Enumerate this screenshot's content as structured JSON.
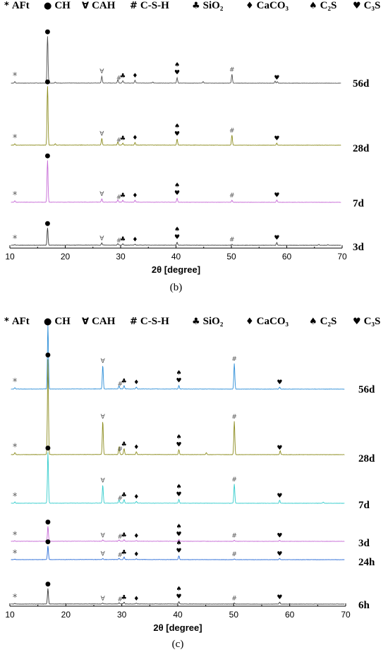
{
  "legend": [
    {
      "symbol": "*",
      "label": "AFt"
    },
    {
      "symbol": "●",
      "label": "CH"
    },
    {
      "symbol": "∀",
      "label": "CAH"
    },
    {
      "symbol": "#",
      "label": "C-S-H"
    },
    {
      "symbol": "♣",
      "label": "SiO₂"
    },
    {
      "symbol": "♦",
      "label": "CaCO₃"
    },
    {
      "symbol": "♠",
      "label": "C₂S"
    },
    {
      "symbol": "♥",
      "label": "C₃S"
    }
  ],
  "chart_data": [
    {
      "type": "line",
      "panel_label": "(b)",
      "xlabel": "2θ [degree]",
      "ylabel": "",
      "xlim": [
        10,
        70
      ],
      "xticks": [
        10,
        20,
        30,
        40,
        50,
        60,
        70
      ],
      "grid": false,
      "series": [
        {
          "name": "56d",
          "color": "#505050",
          "peaks": [
            [
              10.9,
              0.03
            ],
            [
              16.8,
              0.95
            ],
            [
              18.2,
              0.02
            ],
            [
              26.6,
              0.14
            ],
            [
              29.5,
              0.07
            ],
            [
              30.4,
              0.05
            ],
            [
              32.6,
              0.06
            ],
            [
              35.8,
              0.02
            ],
            [
              40.2,
              0.11
            ],
            [
              44.9,
              0.03
            ],
            [
              50.1,
              0.18
            ],
            [
              57.9,
              0.04
            ],
            [
              58.3,
              0.03
            ]
          ]
        },
        {
          "name": "28d",
          "color": "#8c8c1e",
          "peaks": [
            [
              10.9,
              0.02
            ],
            [
              16.8,
              0.88
            ],
            [
              18.2,
              0.02
            ],
            [
              26.6,
              0.1
            ],
            [
              29.5,
              0.05
            ],
            [
              30.4,
              0.03
            ],
            [
              32.6,
              0.04
            ],
            [
              40.2,
              0.09
            ],
            [
              50.1,
              0.15
            ],
            [
              58.2,
              0.03
            ]
          ]
        },
        {
          "name": "7d",
          "color": "#c66ad6",
          "peaks": [
            [
              10.9,
              0.03
            ],
            [
              16.8,
              0.85
            ],
            [
              26.6,
              0.07
            ],
            [
              29.5,
              0.05
            ],
            [
              30.4,
              0.04
            ],
            [
              32.6,
              0.04
            ],
            [
              40.2,
              0.08
            ],
            [
              50.1,
              0.04
            ],
            [
              58.2,
              0.05
            ]
          ]
        },
        {
          "name": "3d",
          "color": "#3a3a3a",
          "peaks": [
            [
              10.9,
              0.02
            ],
            [
              16.8,
              0.55
            ],
            [
              26.6,
              0.07
            ],
            [
              29.5,
              0.05
            ],
            [
              30.4,
              0.04
            ],
            [
              32.6,
              0.03
            ],
            [
              40.2,
              0.09
            ],
            [
              50.1,
              0.03
            ],
            [
              58.2,
              0.09
            ],
            [
              65.8,
              0.03
            ],
            [
              67.4,
              0.02
            ]
          ]
        }
      ],
      "annotations": [
        {
          "series": "56d",
          "markers": [
            [
              10.9,
              "*"
            ],
            [
              16.8,
              "●"
            ],
            [
              26.6,
              "∀"
            ],
            [
              29.7,
              "#"
            ],
            [
              30.4,
              "♣"
            ],
            [
              32.6,
              "♦"
            ],
            [
              40.2,
              "♠♥"
            ],
            [
              50.1,
              "#"
            ],
            [
              58.2,
              "♥"
            ]
          ]
        },
        {
          "series": "28d",
          "markers": [
            [
              10.9,
              "*"
            ],
            [
              16.8,
              "●"
            ],
            [
              26.6,
              "∀"
            ],
            [
              29.7,
              "#"
            ],
            [
              30.4,
              "♣"
            ],
            [
              32.6,
              "♦"
            ],
            [
              40.2,
              "♠♥"
            ],
            [
              50.1,
              "#"
            ],
            [
              58.2,
              "♥"
            ]
          ]
        },
        {
          "series": "7d",
          "markers": [
            [
              10.9,
              "*"
            ],
            [
              16.8,
              "●"
            ],
            [
              26.6,
              "∀"
            ],
            [
              29.7,
              "#"
            ],
            [
              30.4,
              "♣"
            ],
            [
              32.6,
              "♦"
            ],
            [
              40.2,
              "♠♥"
            ],
            [
              50.1,
              "#"
            ],
            [
              58.2,
              "♥"
            ]
          ]
        },
        {
          "series": "3d",
          "markers": [
            [
              10.9,
              "*"
            ],
            [
              16.8,
              "●"
            ],
            [
              26.6,
              "∀"
            ],
            [
              29.7,
              "#"
            ],
            [
              30.4,
              "♣"
            ],
            [
              32.6,
              "♦"
            ],
            [
              40.2,
              "♠♥"
            ],
            [
              50.1,
              "#"
            ],
            [
              58.2,
              "♥"
            ]
          ]
        }
      ]
    },
    {
      "type": "line",
      "panel_label": "(c)",
      "xlabel": "2θ [degree]",
      "ylabel": "",
      "xlim": [
        10,
        70
      ],
      "xticks": [
        10,
        20,
        30,
        40,
        50,
        60,
        70
      ],
      "grid": false,
      "series": [
        {
          "name": "56d",
          "color": "#2f8fd8",
          "peaks": [
            [
              10.9,
              0.02
            ],
            [
              16.8,
              0.95
            ],
            [
              26.6,
              0.35
            ],
            [
              29.5,
              0.05
            ],
            [
              30.4,
              0.05
            ],
            [
              32.6,
              0.03
            ],
            [
              40.2,
              0.05
            ],
            [
              50.1,
              0.38
            ],
            [
              58.2,
              0.03
            ]
          ]
        },
        {
          "name": "28d",
          "color": "#8c8c1e",
          "peaks": [
            [
              10.9,
              0.02
            ],
            [
              16.8,
              1.0
            ],
            [
              26.6,
              0.35
            ],
            [
              29.5,
              0.08
            ],
            [
              30.4,
              0.06
            ],
            [
              32.6,
              0.03
            ],
            [
              40.2,
              0.05
            ],
            [
              45.1,
              0.02
            ],
            [
              50.1,
              0.35
            ],
            [
              58.3,
              0.04
            ]
          ]
        },
        {
          "name": "7d",
          "color": "#33cccc",
          "peaks": [
            [
              10.9,
              0.02
            ],
            [
              16.8,
              0.85
            ],
            [
              26.6,
              0.3
            ],
            [
              29.5,
              0.06
            ],
            [
              30.4,
              0.06
            ],
            [
              32.6,
              0.03
            ],
            [
              40.2,
              0.06
            ],
            [
              50.1,
              0.32
            ],
            [
              58.2,
              0.05
            ],
            [
              66.0,
              0.02
            ]
          ]
        },
        {
          "name": "3d",
          "color": "#c66ad6",
          "peaks": [
            [
              10.9,
              0.02
            ],
            [
              16.8,
              0.6
            ],
            [
              26.6,
              0.05
            ],
            [
              29.5,
              0.05
            ],
            [
              30.4,
              0.06
            ],
            [
              32.6,
              0.03
            ],
            [
              40.2,
              0.07
            ],
            [
              50.1,
              0.04
            ],
            [
              58.2,
              0.04
            ]
          ]
        },
        {
          "name": "24h",
          "color": "#2f6fd8",
          "peaks": [
            [
              10.9,
              0.02
            ],
            [
              16.8,
              0.55
            ],
            [
              26.6,
              0.04
            ],
            [
              29.5,
              0.05
            ],
            [
              30.4,
              0.1
            ],
            [
              32.6,
              0.03
            ],
            [
              40.2,
              0.15
            ],
            [
              50.1,
              0.03
            ],
            [
              58.2,
              0.05
            ]
          ]
        },
        {
          "name": "6h",
          "color": "#3a3a3a",
          "peaks": [
            [
              10.9,
              0.02
            ],
            [
              16.8,
              0.55
            ],
            [
              26.6,
              0.03
            ],
            [
              29.5,
              0.04
            ],
            [
              30.4,
              0.06
            ],
            [
              32.6,
              0.03
            ],
            [
              40.2,
              0.08
            ],
            [
              50.1,
              0.04
            ],
            [
              58.2,
              0.07
            ]
          ]
        }
      ],
      "annotations": [
        {
          "series": "56d",
          "markers": [
            [
              10.9,
              "*"
            ],
            [
              16.8,
              "●"
            ],
            [
              26.6,
              "∀"
            ],
            [
              29.7,
              "#"
            ],
            [
              30.4,
              "♣"
            ],
            [
              32.6,
              "♦"
            ],
            [
              40.2,
              "♠♥"
            ],
            [
              50.1,
              "#"
            ],
            [
              58.2,
              "♥"
            ]
          ]
        },
        {
          "series": "28d",
          "markers": [
            [
              10.9,
              "*"
            ],
            [
              16.8,
              "●"
            ],
            [
              26.6,
              "∀"
            ],
            [
              29.7,
              "#"
            ],
            [
              30.4,
              "♣"
            ],
            [
              32.6,
              "♦"
            ],
            [
              40.2,
              "♠♥"
            ],
            [
              50.1,
              "#"
            ],
            [
              58.2,
              "♥"
            ]
          ]
        },
        {
          "series": "7d",
          "markers": [
            [
              10.9,
              "*"
            ],
            [
              16.8,
              "●"
            ],
            [
              26.6,
              "∀"
            ],
            [
              29.7,
              "#"
            ],
            [
              30.4,
              "♣"
            ],
            [
              32.6,
              "♦"
            ],
            [
              40.2,
              "♠♥"
            ],
            [
              50.1,
              "#"
            ],
            [
              58.2,
              "♥"
            ]
          ]
        },
        {
          "series": "3d",
          "markers": [
            [
              10.9,
              "*"
            ],
            [
              16.8,
              "●"
            ],
            [
              26.6,
              "∀"
            ],
            [
              29.7,
              "#"
            ],
            [
              30.4,
              "♣"
            ],
            [
              32.6,
              "♦"
            ],
            [
              40.2,
              "♠♥"
            ],
            [
              50.1,
              "#"
            ],
            [
              58.2,
              "♥"
            ]
          ]
        },
        {
          "series": "24h",
          "markers": [
            [
              10.9,
              "*"
            ],
            [
              16.8,
              "●"
            ],
            [
              26.6,
              "∀"
            ],
            [
              29.7,
              "#"
            ],
            [
              30.4,
              "♣"
            ],
            [
              32.6,
              "♦"
            ],
            [
              40.2,
              "♠♥"
            ],
            [
              50.1,
              "#"
            ],
            [
              58.2,
              "♥"
            ]
          ]
        },
        {
          "series": "6h",
          "markers": [
            [
              10.9,
              "*"
            ],
            [
              16.8,
              "●"
            ],
            [
              26.6,
              "∀"
            ],
            [
              29.7,
              "#"
            ],
            [
              30.4,
              "♣"
            ],
            [
              32.6,
              "♦"
            ],
            [
              40.2,
              "♠♥"
            ],
            [
              50.1,
              "#"
            ],
            [
              58.2,
              "♥"
            ]
          ]
        }
      ]
    }
  ]
}
